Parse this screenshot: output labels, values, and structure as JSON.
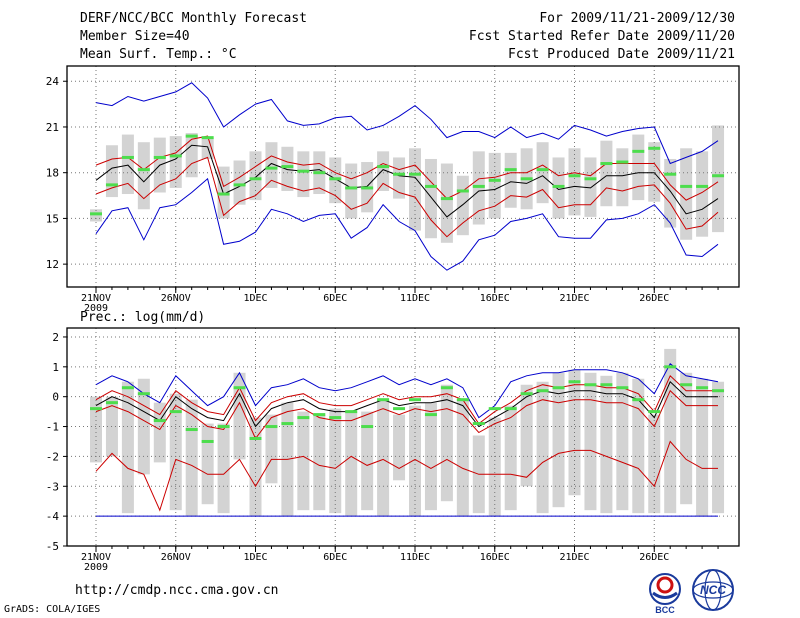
{
  "header": {
    "title": "DERF/NCC/BCC Monthly Forecast",
    "member_size": "Member Size=40",
    "variable": "Mean Surf. Temp.: °C",
    "period": "For 2009/11/21-2009/12/30",
    "refer_date": "Fcst Started Refer Date 2009/11/20",
    "produced_date": "Fcst Produced Date 2009/11/21"
  },
  "footer": {
    "url": "http://cmdp.ncc.cma.gov.cn",
    "credit": "GrADS: COLA/IGES",
    "logo_left": "BCC",
    "logo_right": "NCC"
  },
  "colors": {
    "background": "#ffffff",
    "box": "#d3d3d3",
    "ensemble_mean": "#000000",
    "spread_inner": "#cc0000",
    "envelope_outer": "#0000cc",
    "median_tick": "#4ddd4d",
    "grid": "#777777"
  },
  "chart_data": [
    {
      "type": "line",
      "title": "Mean Surf. Temp.: °C",
      "x_start_date": "2009/11/21",
      "n_days": 40,
      "xtick_labels": [
        "21NOV",
        "26NOV",
        "1DEC",
        "6DEC",
        "11DEC",
        "16DEC",
        "21DEC",
        "26DEC"
      ],
      "xtick_index": [
        0,
        5,
        10,
        15,
        20,
        25,
        30,
        35
      ],
      "year_label": "2009",
      "ylim": [
        10.5,
        25
      ],
      "yticks": [
        12,
        15,
        18,
        21,
        24
      ],
      "grid": true,
      "series": [
        {
          "name": "max",
          "color": "#0000cc",
          "values": [
            22.6,
            22.4,
            23.0,
            22.7,
            23.0,
            23.3,
            23.9,
            22.9,
            21.0,
            21.8,
            22.5,
            22.8,
            21.4,
            21.1,
            21.2,
            21.6,
            21.7,
            20.8,
            21.1,
            21.7,
            22.4,
            21.5,
            20.3,
            20.7,
            20.7,
            20.3,
            21.0,
            20.3,
            20.6,
            20.2,
            21.1,
            20.8,
            20.4,
            20.7,
            20.9,
            21.0,
            18.6,
            19.0,
            19.4,
            20.1
          ]
        },
        {
          "name": "upper",
          "color": "#cc0000",
          "values": [
            18.5,
            18.9,
            19.0,
            18.2,
            19.0,
            19.3,
            20.2,
            20.4,
            17.1,
            17.7,
            18.4,
            19.1,
            18.7,
            18.5,
            18.6,
            18.0,
            17.6,
            18.0,
            18.6,
            18.2,
            18.5,
            17.4,
            16.3,
            16.8,
            17.6,
            17.7,
            18.0,
            18.0,
            18.5,
            17.8,
            18.0,
            17.8,
            18.6,
            18.6,
            18.6,
            18.6,
            17.2,
            16.2,
            16.7,
            17.4
          ]
        },
        {
          "name": "mean",
          "color": "#000000",
          "values": [
            17.5,
            18.3,
            18.5,
            17.4,
            18.5,
            18.9,
            19.8,
            19.7,
            16.6,
            17.1,
            17.7,
            18.6,
            18.2,
            18.1,
            18.2,
            17.6,
            17.0,
            17.1,
            18.2,
            17.8,
            17.7,
            16.4,
            15.1,
            15.9,
            16.8,
            16.9,
            17.4,
            17.3,
            17.8,
            16.9,
            17.1,
            17.0,
            17.8,
            17.8,
            18.0,
            18.0,
            16.8,
            15.3,
            15.6,
            16.3
          ]
        },
        {
          "name": "lower",
          "color": "#cc0000",
          "values": [
            16.6,
            17.0,
            17.3,
            16.3,
            17.2,
            17.6,
            18.6,
            19.0,
            15.2,
            16.1,
            16.5,
            17.5,
            17.1,
            16.8,
            17.0,
            16.5,
            15.6,
            16.0,
            17.3,
            16.7,
            16.4,
            14.9,
            13.8,
            14.7,
            15.5,
            15.8,
            16.5,
            16.4,
            16.9,
            15.7,
            15.9,
            15.9,
            17.0,
            16.8,
            17.1,
            17.2,
            16.0,
            14.3,
            14.5,
            15.4
          ]
        },
        {
          "name": "min",
          "color": "#0000cc",
          "values": [
            14.0,
            15.5,
            15.7,
            13.6,
            15.7,
            15.9,
            16.7,
            17.6,
            13.3,
            13.5,
            14.1,
            15.6,
            15.3,
            14.8,
            15.2,
            15.3,
            13.7,
            14.4,
            15.9,
            14.8,
            14.2,
            12.5,
            11.6,
            12.2,
            13.6,
            13.9,
            14.8,
            15.0,
            15.3,
            13.8,
            13.7,
            13.7,
            14.9,
            15.0,
            15.3,
            15.9,
            14.7,
            12.6,
            12.5,
            13.3
          ]
        }
      ],
      "box_low": [
        14.8,
        16.4,
        16.6,
        15.6,
        16.7,
        17.0,
        17.7,
        18.9,
        15.0,
        15.9,
        16.2,
        17.0,
        16.8,
        16.4,
        16.6,
        16.0,
        15.0,
        15.4,
        16.8,
        16.3,
        14.2,
        13.7,
        13.4,
        13.9,
        14.6,
        15.0,
        15.7,
        15.6,
        16.0,
        15.0,
        15.2,
        15.1,
        15.8,
        15.8,
        16.2,
        16.1,
        14.4,
        13.6,
        13.8,
        14.1
      ],
      "box_high": [
        15.6,
        19.8,
        20.5,
        20.0,
        20.3,
        20.4,
        20.6,
        20.3,
        18.4,
        18.8,
        19.4,
        20.0,
        19.7,
        19.4,
        19.4,
        19.0,
        18.6,
        18.7,
        19.4,
        19.0,
        19.6,
        18.9,
        18.6,
        17.8,
        19.4,
        19.3,
        19.3,
        19.6,
        20.0,
        19.0,
        19.6,
        19.0,
        20.1,
        19.6,
        20.5,
        20.0,
        18.9,
        19.6,
        19.4,
        21.1
      ],
      "median": [
        15.3,
        17.2,
        19.0,
        18.2,
        19.0,
        19.1,
        20.4,
        20.3,
        16.6,
        17.2,
        17.6,
        18.3,
        18.4,
        18.1,
        18.0,
        17.6,
        17.0,
        17.0,
        18.4,
        17.9,
        17.9,
        17.1,
        16.3,
        16.8,
        17.1,
        17.5,
        18.2,
        17.6,
        18.2,
        17.1,
        17.8,
        17.6,
        18.6,
        18.7,
        19.4,
        19.6,
        17.9,
        17.1,
        17.1,
        17.8
      ]
    },
    {
      "type": "line",
      "title": "Prec.: log(mm/d)",
      "x_start_date": "2009/11/21",
      "n_days": 40,
      "xtick_labels": [
        "21NOV",
        "26NOV",
        "1DEC",
        "6DEC",
        "11DEC",
        "16DEC",
        "21DEC",
        "26DEC"
      ],
      "xtick_index": [
        0,
        5,
        10,
        15,
        20,
        25,
        30,
        35
      ],
      "year_label": "2009",
      "ylim": [
        -5,
        2.3
      ],
      "yticks": [
        -5,
        -4,
        -3,
        -2,
        -1,
        0,
        1,
        2
      ],
      "grid": true,
      "series": [
        {
          "name": "max",
          "color": "#0000cc",
          "values": [
            0.4,
            0.7,
            0.5,
            0.1,
            -0.2,
            0.7,
            0.2,
            -0.3,
            0.0,
            0.8,
            -0.3,
            0.3,
            0.4,
            0.6,
            0.3,
            0.2,
            0.3,
            0.5,
            0.7,
            0.4,
            0.6,
            0.4,
            0.6,
            0.3,
            -0.7,
            -0.3,
            0.5,
            0.7,
            0.8,
            0.8,
            0.9,
            0.9,
            0.9,
            0.8,
            0.6,
            0.1,
            1.1,
            0.7,
            0.6,
            0.5
          ]
        },
        {
          "name": "upper",
          "color": "#cc0000",
          "values": [
            -0.1,
            0.2,
            0.0,
            -0.3,
            -0.6,
            0.2,
            -0.2,
            -0.5,
            -0.6,
            0.3,
            -0.8,
            -0.2,
            0.0,
            0.1,
            -0.2,
            -0.3,
            -0.3,
            -0.1,
            0.1,
            -0.1,
            0.0,
            0.0,
            0.1,
            -0.1,
            -0.9,
            -0.5,
            -0.2,
            0.2,
            0.4,
            0.3,
            0.4,
            0.4,
            0.3,
            0.3,
            0.1,
            -0.5,
            0.7,
            0.2,
            0.2,
            0.2
          ]
        },
        {
          "name": "mean",
          "color": "#000000",
          "values": [
            -0.3,
            0.0,
            -0.2,
            -0.5,
            -0.8,
            0.0,
            -0.4,
            -0.7,
            -0.8,
            0.1,
            -1.0,
            -0.4,
            -0.2,
            -0.1,
            -0.4,
            -0.5,
            -0.5,
            -0.3,
            -0.1,
            -0.3,
            -0.2,
            -0.2,
            -0.1,
            -0.3,
            -1.0,
            -0.7,
            -0.4,
            0.0,
            0.2,
            0.1,
            0.2,
            0.2,
            0.1,
            0.1,
            -0.1,
            -0.7,
            0.5,
            0.0,
            0.0,
            0.0
          ]
        },
        {
          "name": "lower",
          "color": "#cc0000",
          "values": [
            -0.5,
            -0.3,
            -0.5,
            -0.8,
            -1.1,
            -0.3,
            -0.6,
            -1.0,
            -1.1,
            -0.2,
            -1.4,
            -0.7,
            -0.5,
            -0.4,
            -0.7,
            -0.8,
            -0.8,
            -0.6,
            -0.4,
            -0.6,
            -0.4,
            -0.5,
            -0.4,
            -0.6,
            -1.2,
            -0.9,
            -0.7,
            -0.3,
            -0.1,
            -0.2,
            -0.1,
            -0.1,
            -0.2,
            -0.2,
            -0.4,
            -1.0,
            0.2,
            -0.3,
            -0.3,
            -0.3
          ]
        },
        {
          "name": "min",
          "color": "#cc0000",
          "values": [
            -2.5,
            -1.9,
            -2.4,
            -2.6,
            -3.8,
            -2.1,
            -2.3,
            -2.6,
            -2.6,
            -2.1,
            -3.0,
            -2.1,
            -2.1,
            -2.0,
            -2.3,
            -2.4,
            -2.0,
            -2.3,
            -2.1,
            -2.4,
            -2.1,
            -2.4,
            -2.1,
            -2.4,
            -2.6,
            -2.6,
            -2.6,
            -2.7,
            -2.2,
            -1.9,
            -1.8,
            -1.8,
            -2.0,
            -2.2,
            -2.4,
            -3.0,
            -1.5,
            -2.1,
            -2.4,
            -2.4
          ]
        },
        {
          "name": "floor",
          "color": "#0000cc",
          "values": [
            -4,
            -4,
            -4,
            -4,
            -4,
            -4,
            -4,
            -4,
            -4,
            -4,
            -4,
            -4,
            -4,
            -4,
            -4,
            -4,
            -4,
            -4,
            -4,
            -4,
            -4,
            -4,
            -4,
            -4,
            -4,
            -4,
            -4,
            -4,
            -4,
            -4,
            -4,
            -4,
            -4,
            -4,
            -4,
            -4,
            -4,
            -4,
            -4,
            -4
          ]
        }
      ],
      "box_low": [
        -2.2,
        -2.0,
        -3.9,
        -2.6,
        -2.2,
        -3.8,
        -4.0,
        -3.6,
        -3.9,
        -2.1,
        -4.0,
        -2.9,
        -4.0,
        -3.8,
        -3.8,
        -3.9,
        -4.0,
        -3.8,
        -4.0,
        -2.8,
        -4.0,
        -3.8,
        -3.5,
        -4.0,
        -3.9,
        -4.0,
        -3.8,
        -3.0,
        -3.9,
        -3.7,
        -3.3,
        -3.8,
        -3.9,
        -3.8,
        -3.9,
        -3.9,
        -3.9,
        -3.6,
        -4.0,
        -3.9
      ],
      "box_high": [
        0.0,
        0.0,
        0.5,
        0.6,
        -0.2,
        0.1,
        -0.1,
        -0.9,
        -0.9,
        0.8,
        -0.7,
        -0.6,
        -0.2,
        -0.5,
        -0.6,
        -0.4,
        -0.5,
        -0.5,
        -0.1,
        -0.6,
        -0.3,
        -0.2,
        0.4,
        -0.1,
        -1.3,
        -0.7,
        -0.3,
        0.4,
        0.5,
        0.8,
        0.9,
        0.8,
        0.7,
        0.8,
        0.6,
        -0.6,
        1.6,
        0.8,
        0.6,
        0.5
      ],
      "median": [
        -0.4,
        -0.2,
        0.3,
        0.1,
        -0.8,
        -0.5,
        -1.1,
        -1.5,
        -1.0,
        0.3,
        -1.4,
        -1.0,
        -0.9,
        -0.7,
        -0.6,
        -0.7,
        -0.5,
        -1.0,
        -0.1,
        -0.4,
        -0.1,
        -0.6,
        0.3,
        -0.1,
        -0.9,
        -0.4,
        -0.4,
        0.1,
        0.2,
        0.3,
        0.5,
        0.4,
        0.4,
        0.3,
        -0.1,
        -0.5,
        1.0,
        0.4,
        0.3,
        0.2
      ]
    }
  ]
}
